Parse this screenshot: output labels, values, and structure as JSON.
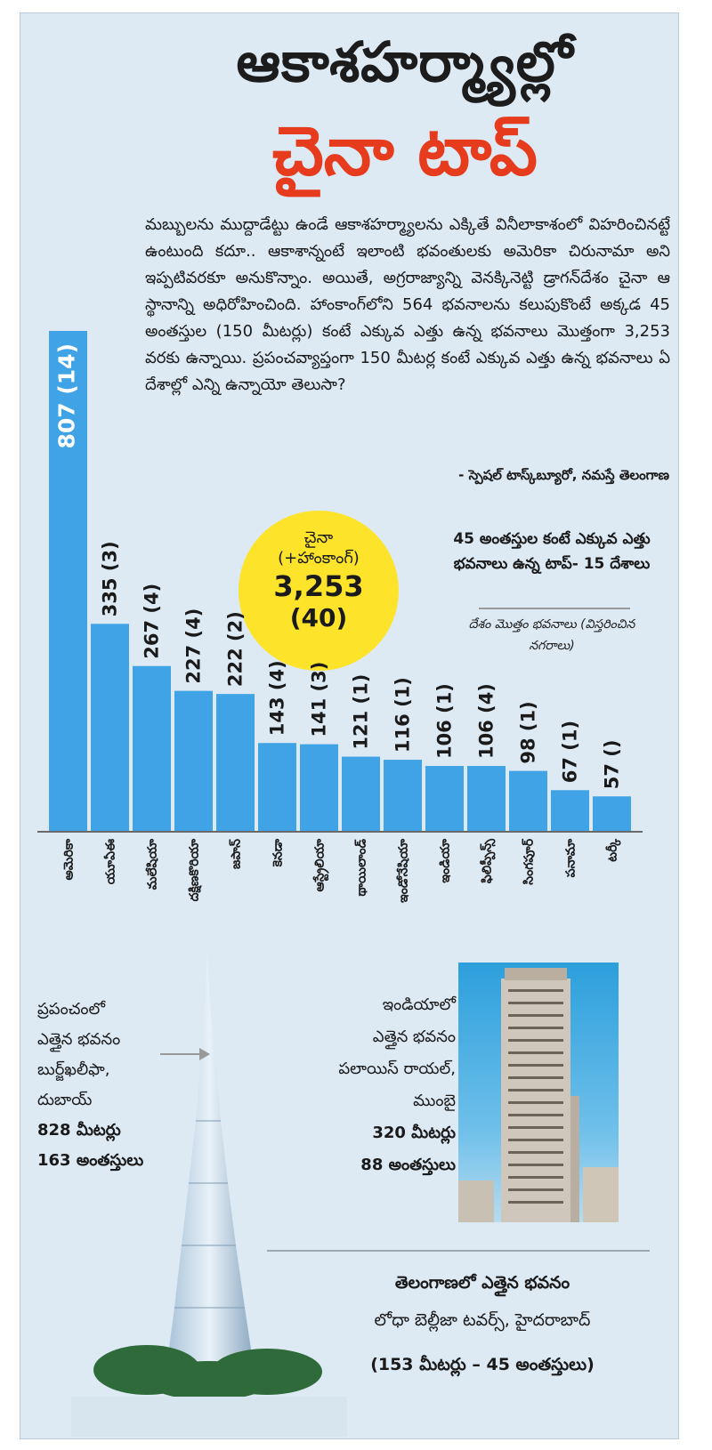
{
  "header": {
    "title_line1": "ఆకాశహర్మ్యాల్లో",
    "title_line2": "చైనా టాప్"
  },
  "intro": {
    "text": "మబ్బులను ముద్దాడేట్టు ఉండే ఆకాశహర్మ్యాలను ఎక్కితే వినీలాకాశంలో విహరించినట్టే ఉంటుంది కదూ.. ఆకాశాన్నంటే ఇలాంటి భవంతులకు అమెరికా చిరునామా అని ఇప్పటివరకూ అనుకొన్నాం. అయితే, అగ్రరాజ్యాన్ని వెనక్కినెట్టి డ్రాగన్‌దేశం చైనా ఆ స్థానాన్ని అధిరోహించింది. హాంకాంగ్‌లోని 564 భవనాలను కలుపుకొంటే అక్కడ 45 అంతస్తుల (150 మీటర్లు) కంటే ఎక్కువ ఎత్తు ఉన్న భవనాలు మొత్తంగా 3,253 వరకు ఉన్నాయి. ప్రపంచవ్యాప్తంగా 150 మీటర్ల కంటే ఎక్కువ ఎత్తు ఉన్న భవనాలు ఏ దేశాల్లో ఎన్ని ఉన్నాయో తెలుసా?",
    "credit": "- స్పెషల్ టాస్క్‌బ్యూరో, నమస్తే తెలంగాణ"
  },
  "highlight": {
    "label": "చైనా",
    "sublabel": "(+హాంకాంగ్)",
    "value": "3,253",
    "cities": "(40)"
  },
  "legend": {
    "title": "45 అంతస్తుల కంటే ఎక్కువ ఎత్తు భవనాలు ఉన్న టాప్- 15 దేశాలు",
    "note": "దేశం మొత్తం భవనాలు (విస్తరించిన నగరాలు)"
  },
  "chart_data": {
    "type": "bar",
    "categories": [
      "అమెరికా",
      "యూఏఈ",
      "మలేషియా",
      "దక్షిణకొరియా",
      "జపాన్",
      "కెనడా",
      "ఆస్ట్రేలియా",
      "థాయిలాండ్",
      "ఇండోనేషియా",
      "ఇండియా",
      "ఫిలిప్పీన్స్",
      "సింగపూర్",
      "పనామా",
      "టర్కీ"
    ],
    "values": [
      807,
      335,
      267,
      227,
      222,
      143,
      141,
      121,
      116,
      106,
      106,
      98,
      67,
      57
    ],
    "labels": [
      "807 (14)",
      "335 (3)",
      "267 (4)",
      "227 (4)",
      "222 (2)",
      "143 (4)",
      "141 (3)",
      "121 (1)",
      "116 (1)",
      "106 (1)",
      "106 (4)",
      "98 (1)",
      "67 (1)",
      "57 ()"
    ],
    "ylim": [
      0,
      807
    ],
    "grid": false,
    "colors": {
      "bar": "#3fa3e6"
    }
  },
  "world_tallest": {
    "lines": [
      "ప్రపంచంలో",
      "ఎత్తైన భవనం",
      "బుర్జ్‌ఖలీఫా,",
      "దుబాయ్"
    ],
    "height": "828 మీటర్లు",
    "floors": "163 అంతస్తులు"
  },
  "india_tallest": {
    "lines": [
      "ఇండియాలో",
      "ఎత్తైన భవనం",
      "పలాయిస్ రాయల్,",
      "ముంబై"
    ],
    "height": "320 మీటర్లు",
    "floors": "88 అంతస్తులు"
  },
  "telangana_tallest": {
    "title": "తెలంగాణలో ఎత్తైన భవనం",
    "name": "లోధా బెల్లీజా టవర్స్, హైదరాబాద్",
    "detail": "(153 మీటర్లు – 45 అంతస్తులు)"
  },
  "colors": {
    "panel_bg": "#dde9f3",
    "accent_red": "#e63b1d",
    "highlight_yellow": "#fde32a",
    "bar_blue": "#3fa3e6"
  }
}
